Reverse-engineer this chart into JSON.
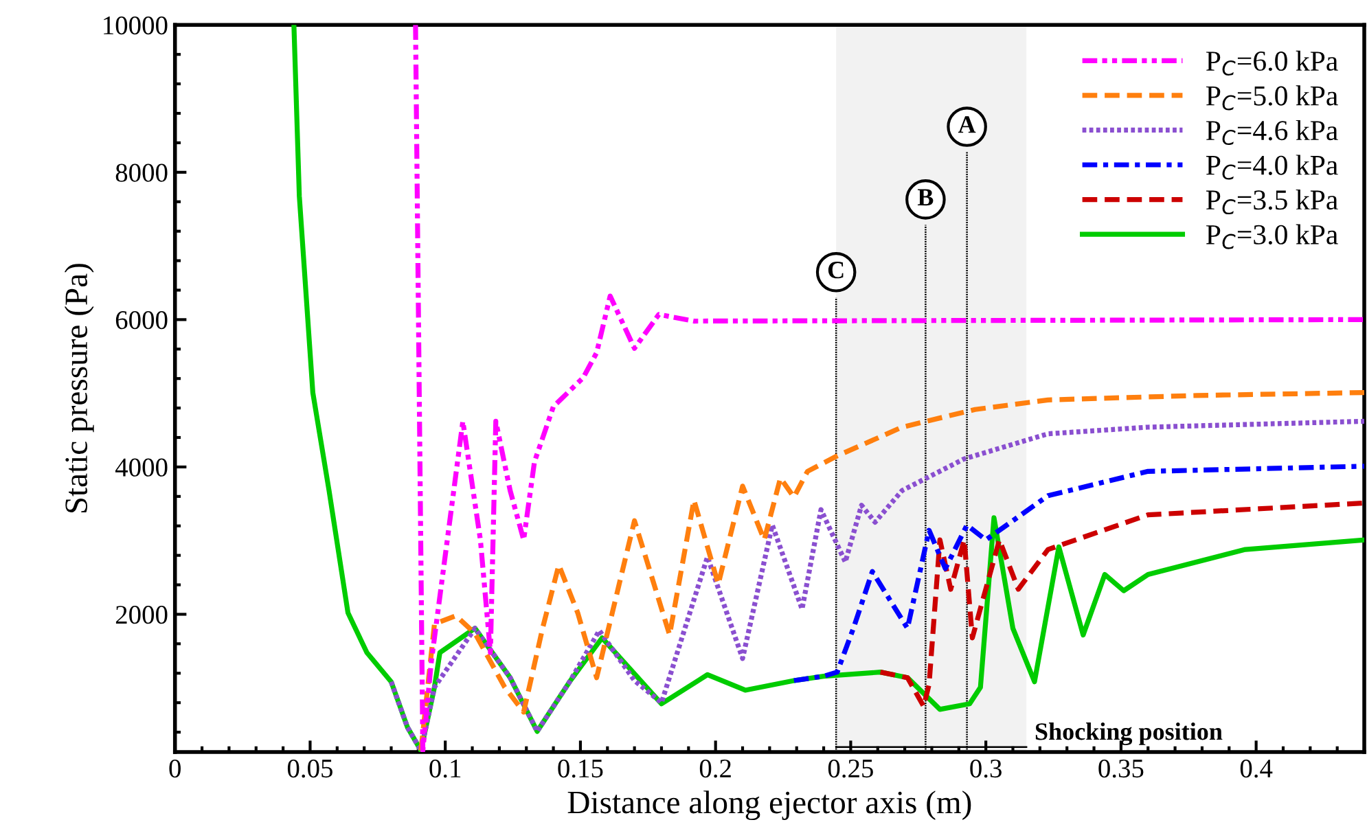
{
  "chart_data": {
    "type": "line",
    "xlabel": "Distance along ejector axis (m)",
    "ylabel": "Static pressure (Pa)",
    "xlim": [
      0,
      0.44
    ],
    "ylim": [
      130,
      10000
    ],
    "xticks": [
      0,
      0.05,
      0.1,
      0.15,
      0.2,
      0.25,
      0.3,
      0.35,
      0.4
    ],
    "yticks": [
      2000,
      4000,
      6000,
      8000,
      10000
    ],
    "grid": false,
    "legend": "top right",
    "series": [
      {
        "name": "P$_{C}$=6.0 kPa",
        "color": "#ff00ff",
        "line_style": "dashdotdot",
        "x": [
          0.089,
          0.0917,
          0.0948,
          0.1065,
          0.113,
          0.1167,
          0.1187,
          0.124,
          0.129,
          0.133,
          0.14,
          0.151,
          0.156,
          0.161,
          0.17,
          0.179,
          0.192,
          0.44
        ],
        "values": [
          10000,
          150,
          1345,
          4620,
          3010,
          1480,
          4620,
          3680,
          3010,
          4070,
          4820,
          5210,
          5550,
          6320,
          5610,
          6070,
          5980,
          6000
        ]
      },
      {
        "name": "P$_{C}$=5.0 kPa",
        "color": "#ff7f0e",
        "line_style": "dashed",
        "x": [
          0.091,
          0.096,
          0.104,
          0.111,
          0.122,
          0.129,
          0.136,
          0.142,
          0.149,
          0.156,
          0.17,
          0.183,
          0.192,
          0.201,
          0.21,
          0.218,
          0.224,
          0.229,
          0.234,
          0.245,
          0.269,
          0.296,
          0.323,
          0.378,
          0.44
        ],
        "values": [
          150,
          1870,
          1980,
          1740,
          1010,
          673,
          1810,
          2670,
          2020,
          1140,
          3270,
          1720,
          3550,
          2410,
          3740,
          3010,
          3850,
          3590,
          3940,
          4150,
          4540,
          4780,
          4910,
          4970,
          5010
        ]
      },
      {
        "name": "P$_{C}$=4.6 kPa",
        "color": "#8a4fd0",
        "line_style": "dotted",
        "x": [
          0.08,
          0.086,
          0.091,
          0.096,
          0.111,
          0.124,
          0.134,
          0.146,
          0.157,
          0.17,
          0.18,
          0.197,
          0.21,
          0.221,
          0.232,
          0.239,
          0.248,
          0.254,
          0.259,
          0.269,
          0.292,
          0.323,
          0.36,
          0.44
        ],
        "values": [
          1084,
          467,
          150,
          1010,
          1810,
          1140,
          411,
          1084,
          1780,
          1100,
          800,
          2780,
          1400,
          3210,
          2070,
          3420,
          2710,
          3480,
          3250,
          3680,
          4110,
          4450,
          4540,
          4620
        ]
      },
      {
        "name": "P$_{C}$=4.0 kPa",
        "color": "#0000ff",
        "line_style": "dashdot",
        "x": [
          0.229,
          0.24,
          0.245,
          0.251,
          0.258,
          0.271,
          0.279,
          0.285,
          0.293,
          0.3,
          0.323,
          0.36,
          0.44
        ],
        "values": [
          1100,
          1160,
          1215,
          1810,
          2580,
          1810,
          3140,
          2620,
          3210,
          3010,
          3610,
          3940,
          4010
        ]
      },
      {
        "name": "P$_{C}$=3.5 kPa",
        "color": "#cc0000",
        "line_style": "dashed",
        "x": [
          0.261,
          0.271,
          0.277,
          0.279,
          0.283,
          0.287,
          0.292,
          0.295,
          0.305,
          0.312,
          0.323,
          0.36,
          0.44
        ],
        "values": [
          1215,
          1140,
          750,
          1050,
          3010,
          2340,
          3010,
          1680,
          3010,
          2340,
          2880,
          3350,
          3510
        ]
      },
      {
        "name": "P$_{C}$=3.0 kPa",
        "color": "#00cc00",
        "line_style": "solid",
        "x": [
          0.044,
          0.046,
          0.051,
          0.057,
          0.064,
          0.071,
          0.08,
          0.086,
          0.091,
          0.096,
          0.098,
          0.111,
          0.124,
          0.134,
          0.146,
          0.158,
          0.18,
          0.197,
          0.211,
          0.229,
          0.24,
          0.261,
          0.271,
          0.283,
          0.294,
          0.298,
          0.303,
          0.31,
          0.318,
          0.327,
          0.336,
          0.344,
          0.351,
          0.36,
          0.396,
          0.44
        ],
        "values": [
          10000,
          7680,
          5010,
          3680,
          2020,
          1480,
          1084,
          467,
          150,
          1010,
          1480,
          1810,
          1140,
          411,
          1084,
          1680,
          785,
          1180,
          970,
          1100,
          1160,
          1215,
          1140,
          710,
          785,
          1010,
          3310,
          1810,
          1084,
          2915,
          1720,
          2540,
          2320,
          2540,
          2880,
          3010
        ]
      }
    ],
    "ref_lines": [
      {
        "axis": "x",
        "value": 0.2446,
        "label": "C",
        "line_style": "dotted"
      },
      {
        "axis": "x",
        "value": 0.2777,
        "label": "B",
        "line_style": "dotted"
      },
      {
        "axis": "x",
        "value": 0.293,
        "label": "A",
        "line_style": "dotted"
      }
    ],
    "bands": [
      {
        "axis": "x",
        "from": 0.2446,
        "to": 0.315,
        "label": "Shocking position",
        "color": "#f2f2f2"
      }
    ]
  }
}
